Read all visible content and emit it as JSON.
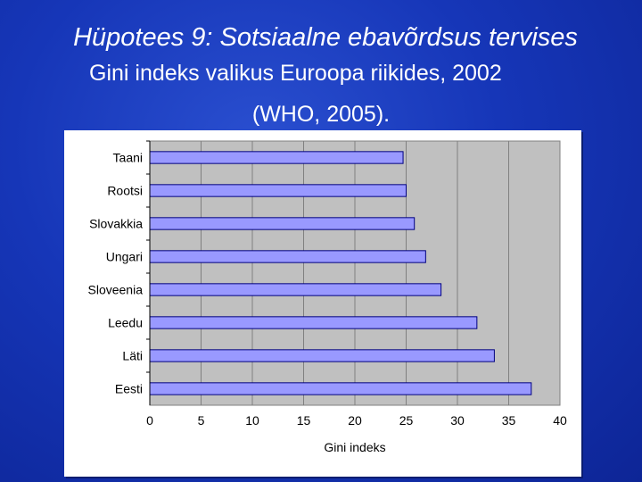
{
  "slide": {
    "title": "Hüpotees 9: Sotsiaalne ebavõrdsus tervises",
    "subtitle": "Gini indeks valikus Euroopa riikides, 2002",
    "subtitle2": "(WHO, 2005)."
  },
  "colors": {
    "background": "#1a3cc0",
    "plot_area": "#c0c0c0",
    "bar_fill": "#9999ff",
    "bar_stroke": "#000080"
  },
  "chart_data": {
    "type": "bar",
    "orientation": "horizontal",
    "categories": [
      "Taani",
      "Rootsi",
      "Slovakkia",
      "Ungari",
      "Sloveenia",
      "Leedu",
      "Läti",
      "Eesti"
    ],
    "values": [
      24.7,
      25.0,
      25.8,
      26.9,
      28.4,
      31.9,
      33.6,
      37.2
    ],
    "xlabel": "Gini indeks",
    "xlim": [
      0,
      40
    ],
    "xticks": [
      "0",
      "5",
      "10",
      "15",
      "20",
      "25",
      "30",
      "35",
      "40"
    ],
    "grid": "vertical"
  }
}
